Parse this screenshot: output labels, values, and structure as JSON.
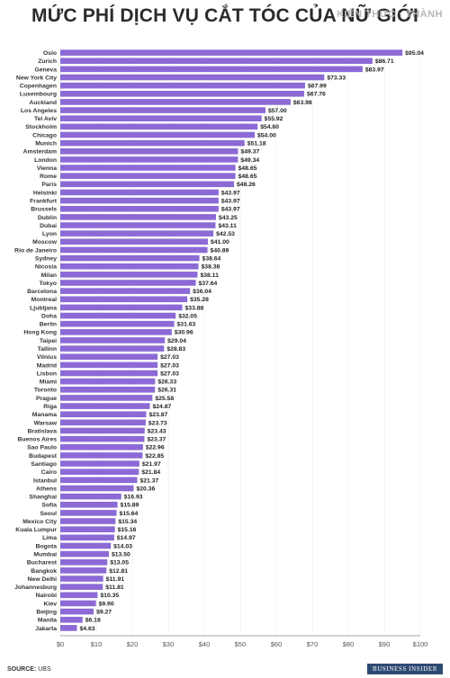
{
  "watermark": "KIẾN THỨC · THÀNH",
  "footer": {
    "source_label": "SOURCE:",
    "source_value": "UBS",
    "brand": "BUSINESS INSIDER"
  },
  "chart_data": {
    "type": "bar",
    "orientation": "horizontal",
    "title": "MỨC PHÍ DỊCH VỤ CẮT TÓC CỦA NỮ GIỚI",
    "xlim": [
      0,
      100
    ],
    "xticks": [
      "$0",
      "$10",
      "$20",
      "$30",
      "$40",
      "$50",
      "$60",
      "$70",
      "$80",
      "$90",
      "$100"
    ],
    "bar_color": "#8c6ad6",
    "categories": [
      "Oslo",
      "Zurich",
      "Geneva",
      "New York City",
      "Copenhagen",
      "Luxembourg",
      "Auckland",
      "Los Angeles",
      "Tel Aviv",
      "Stockholm",
      "Chicago",
      "Munich",
      "Amsterdam",
      "London",
      "Vienna",
      "Rome",
      "Paris",
      "Helsinki",
      "Frankfurt",
      "Brussels",
      "Dublin",
      "Dubai",
      "Lyon",
      "Moscow",
      "Rio de Janeiro",
      "Sydney",
      "Nicosia",
      "Milan",
      "Tokyo",
      "Barcelona",
      "Montreal",
      "Ljubljana",
      "Doha",
      "Berlin",
      "Hong Kong",
      "Taipei",
      "Tallinn",
      "Vilnius",
      "Madrid",
      "Lisbon",
      "Miami",
      "Toronto",
      "Prague",
      "Riga",
      "Manama",
      "Warsaw",
      "Bratislava",
      "Buenos Aires",
      "Sao Paulo",
      "Budapest",
      "Santiago",
      "Cairo",
      "Istanbul",
      "Athens",
      "Shanghai",
      "Sofia",
      "Seoul",
      "Mexico City",
      "Kuala Lumpur",
      "Lima",
      "Bogota",
      "Mumbai",
      "Bucharest",
      "Bangkok",
      "New Delhi",
      "Johannesburg",
      "Nairobi",
      "Kiev",
      "Beijing",
      "Manila",
      "Jakarta"
    ],
    "values": [
      95.04,
      86.71,
      83.97,
      73.33,
      67.99,
      67.76,
      63.98,
      57.0,
      55.92,
      54.8,
      54.0,
      51.18,
      49.37,
      49.34,
      48.65,
      48.65,
      48.26,
      43.97,
      43.97,
      43.97,
      43.25,
      43.11,
      42.53,
      41.0,
      40.89,
      38.64,
      38.38,
      38.11,
      37.64,
      36.04,
      35.28,
      33.88,
      32.05,
      31.63,
      30.96,
      29.04,
      28.83,
      27.03,
      27.03,
      27.03,
      26.33,
      26.31,
      25.58,
      24.87,
      23.87,
      23.73,
      23.43,
      23.37,
      22.96,
      22.85,
      21.97,
      21.84,
      21.37,
      20.36,
      16.93,
      15.89,
      15.64,
      15.34,
      15.16,
      14.97,
      14.03,
      13.5,
      13.05,
      12.81,
      11.91,
      11.81,
      10.35,
      9.9,
      9.27,
      6.18,
      4.63
    ],
    "value_labels": [
      "$95.04",
      "$86.71",
      "$83.97",
      "$73.33",
      "$67.99",
      "$67.76",
      "$63.98",
      "$57.00",
      "$55.92",
      "$54.80",
      "$54.00",
      "$51.18",
      "$49.37",
      "$49.34",
      "$48.65",
      "$48.65",
      "$48.26",
      "$43.97",
      "$43.97",
      "$43.97",
      "$43.25",
      "$43.11",
      "$42.53",
      "$41.00",
      "$40.89",
      "$38.64",
      "$38.38",
      "$38.11",
      "$37.64",
      "$36.04",
      "$35.28",
      "$33.88",
      "$32.05",
      "$31.63",
      "$30.96",
      "$29.04",
      "$28.83",
      "$27.03",
      "$27.03",
      "$27.03",
      "$26.33",
      "$26.31",
      "$25.58",
      "$24.87",
      "$23.87",
      "$23.73",
      "$23.43",
      "$23.37",
      "$22.96",
      "$22.85",
      "$21.97",
      "$21.84",
      "$21.37",
      "$20.36",
      "$16.93",
      "$15.89",
      "$15.64",
      "$15.34",
      "$15.16",
      "$14.97",
      "$14.03",
      "$13.50",
      "$13.05",
      "$12.81",
      "$11.91",
      "$11.81",
      "$10.35",
      "$9.90",
      "$9.27",
      "$6.18",
      "$4.63"
    ]
  }
}
